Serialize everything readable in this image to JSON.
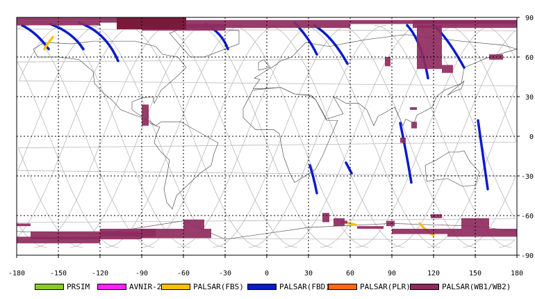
{
  "axes": {
    "x_ticks": [
      -180,
      -150,
      -120,
      -90,
      -60,
      -30,
      0,
      30,
      60,
      90,
      120,
      150,
      180
    ],
    "y_ticks": [
      90,
      60,
      30,
      0,
      -30,
      -60,
      -90
    ],
    "x_labels": [
      "-180",
      "-150",
      "-120",
      "-90",
      "-60",
      "-30",
      "0",
      "30",
      "60",
      "90",
      "120",
      "150",
      "180"
    ],
    "y_labels": [
      "90",
      "60",
      "30",
      "0",
      "-30",
      "-60",
      "-90"
    ]
  },
  "colors": {
    "grid": "#000000",
    "orbit": "#b8b8b8",
    "coast": "#555555"
  },
  "legend": [
    {
      "label": "PRSIM",
      "color": "#88cc22"
    },
    {
      "label": "AVNIR-2",
      "color": "#ff22ff"
    },
    {
      "label": "PALSAR(FBS)",
      "color": "#ffc000"
    },
    {
      "label": "PALSAR(FBD)",
      "color": "#0a1ccc"
    },
    {
      "label": "PALSAR(PLR)",
      "color": "#ff6a10"
    },
    {
      "label": "PALSAR(WB1/WB2)",
      "color": "#8e2b5e"
    }
  ]
}
